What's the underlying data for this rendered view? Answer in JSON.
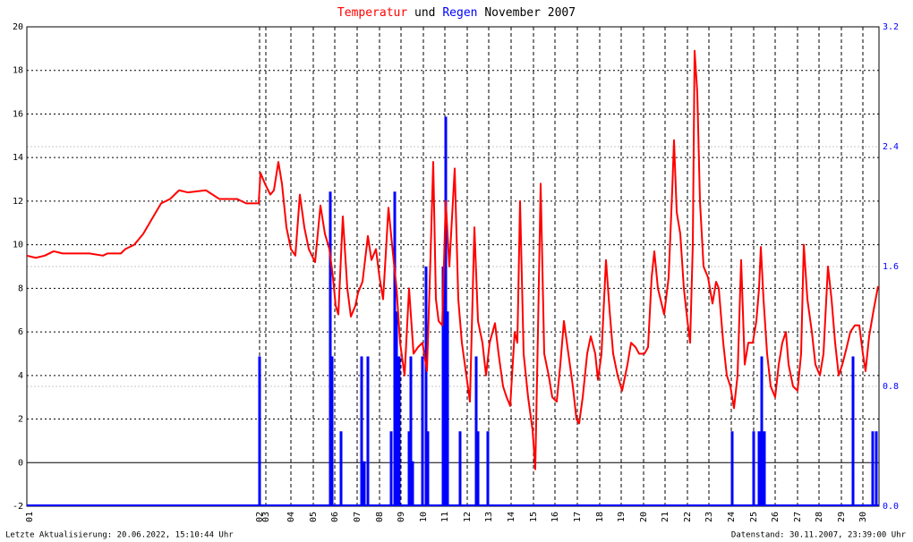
{
  "chart_data": {
    "type": "line-bar",
    "title": [
      "Temperatur",
      "und",
      "Regen",
      "November 2007"
    ],
    "footer_left": "Letzte Aktualisierung: 20.06.2022, 15:10:44 Uhr",
    "footer_right": "Datenstand: 30.11.2007, 23:39:00 Uhr",
    "xlim": [
      30,
      982
    ],
    "xticks": [
      {
        "value": 33,
        "label": "01"
      },
      {
        "value": 290,
        "label": "02"
      },
      {
        "value": 297,
        "label": "03"
      },
      {
        "value": 325,
        "label": "04"
      },
      {
        "value": 350,
        "label": "05"
      },
      {
        "value": 374,
        "label": "06"
      },
      {
        "value": 399,
        "label": "07"
      },
      {
        "value": 424,
        "label": "08"
      },
      {
        "value": 448,
        "label": "09"
      },
      {
        "value": 473,
        "label": "10"
      },
      {
        "value": 497,
        "label": "11"
      },
      {
        "value": 522,
        "label": "12"
      },
      {
        "value": 546,
        "label": "13"
      },
      {
        "value": 571,
        "label": "14"
      },
      {
        "value": 596,
        "label": "15"
      },
      {
        "value": 620,
        "label": "16"
      },
      {
        "value": 645,
        "label": "17"
      },
      {
        "value": 670,
        "label": "18"
      },
      {
        "value": 694,
        "label": "19"
      },
      {
        "value": 719,
        "label": "20"
      },
      {
        "value": 743,
        "label": "21"
      },
      {
        "value": 768,
        "label": "22"
      },
      {
        "value": 792,
        "label": "23"
      },
      {
        "value": 817,
        "label": "24"
      },
      {
        "value": 842,
        "label": "25"
      },
      {
        "value": 866,
        "label": "26"
      },
      {
        "value": 891,
        "label": "27"
      },
      {
        "value": 915,
        "label": "28"
      },
      {
        "value": 940,
        "label": "29"
      },
      {
        "value": 964,
        "label": "30"
      }
    ],
    "ylim": [
      -2,
      20
    ],
    "yticks": [
      -2,
      0,
      2,
      4,
      6,
      8,
      10,
      12,
      14,
      16,
      18,
      20
    ],
    "y2lim": [
      0,
      3.2
    ],
    "y2ticks": [
      {
        "value": 0,
        "label": "0.0"
      },
      0.8,
      1.6,
      2.4,
      3.2
    ],
    "grid": true,
    "series": [
      {
        "name": "Temperatur",
        "color": "#ff0000",
        "kind": "line",
        "x": [
          30,
          40,
          50,
          60,
          70,
          80,
          100,
          115,
          120,
          135,
          140,
          150,
          160,
          170,
          180,
          190,
          200,
          210,
          230,
          245,
          265,
          275,
          289,
          291,
          296,
          302,
          306,
          311,
          315,
          320,
          325,
          330,
          335,
          340,
          345,
          352,
          358,
          363,
          368,
          372,
          375,
          378,
          383,
          388,
          392,
          397,
          400,
          405,
          411,
          415,
          420,
          424,
          428,
          434,
          438,
          443,
          447,
          452,
          457,
          462,
          467,
          472,
          477,
          481,
          484,
          487,
          490,
          494,
          498,
          502,
          508,
          512,
          516,
          520,
          525,
          530,
          534,
          539,
          543,
          547,
          553,
          557,
          562,
          566,
          570,
          575,
          578,
          581,
          585,
          590,
          595,
          598,
          601,
          604,
          608,
          613,
          617,
          622,
          626,
          630,
          635,
          640,
          644,
          647,
          651,
          656,
          660,
          665,
          668,
          672,
          677,
          681,
          685,
          690,
          695,
          701,
          705,
          710,
          714,
          720,
          724,
          728,
          731,
          735,
          742,
          747,
          751,
          753,
          756,
          760,
          764,
          768,
          771,
          774,
          776,
          779,
          782,
          786,
          791,
          796,
          800,
          803,
          808,
          812,
          816,
          820,
          824,
          828,
          832,
          836,
          841,
          845,
          848,
          850,
          853,
          857,
          861,
          866,
          870,
          874,
          878,
          881,
          886,
          891,
          895,
          898,
          902,
          907,
          911,
          916,
          920,
          925,
          929,
          933,
          937,
          941,
          946,
          950,
          955,
          960,
          964,
          967,
          971,
          976,
          981
        ],
        "values": [
          9.5,
          9.4,
          9.5,
          9.7,
          9.6,
          9.6,
          9.6,
          9.5,
          9.6,
          9.6,
          9.8,
          10.0,
          10.5,
          11.2,
          11.9,
          12.1,
          12.5,
          12.4,
          12.5,
          12.1,
          12.1,
          11.9,
          11.9,
          13.3,
          12.8,
          12.3,
          12.5,
          13.8,
          12.8,
          10.8,
          9.8,
          9.5,
          12.3,
          10.8,
          9.8,
          9.2,
          11.8,
          10.5,
          9.8,
          8.5,
          7.2,
          6.8,
          11.3,
          8.0,
          6.7,
          7.2,
          7.8,
          8.3,
          10.4,
          9.3,
          9.8,
          8.5,
          7.5,
          11.7,
          10.0,
          8.0,
          5.5,
          4.0,
          8.0,
          5.0,
          5.3,
          5.5,
          4.2,
          9.5,
          13.8,
          7.5,
          6.5,
          6.3,
          12.0,
          9.0,
          13.5,
          7.5,
          5.5,
          4.3,
          2.8,
          10.8,
          6.5,
          5.5,
          4.0,
          5.5,
          6.4,
          5.0,
          3.5,
          3.0,
          2.6,
          6.0,
          5.5,
          12.0,
          5.0,
          3.0,
          1.5,
          -0.3,
          6.0,
          12.8,
          5.0,
          4.0,
          3.0,
          2.8,
          4.5,
          6.5,
          5.0,
          3.5,
          2.0,
          1.8,
          3.0,
          5.0,
          5.8,
          5.0,
          3.8,
          5.0,
          9.3,
          7.0,
          5.0,
          4.0,
          3.3,
          4.5,
          5.5,
          5.3,
          5.0,
          5.0,
          5.3,
          8.5,
          9.7,
          8.0,
          6.8,
          8.5,
          12.5,
          14.8,
          11.5,
          10.5,
          8.0,
          6.5,
          5.5,
          10.0,
          18.9,
          17.0,
          12.0,
          9.0,
          8.5,
          7.3,
          8.3,
          8.0,
          5.5,
          4.0,
          3.5,
          2.5,
          4.0,
          9.3,
          4.5,
          5.5,
          5.5,
          6.5,
          8.0,
          9.9,
          7.5,
          5.0,
          3.5,
          3.0,
          4.5,
          5.5,
          6.0,
          4.5,
          3.5,
          3.3,
          5.0,
          10.0,
          7.5,
          6.0,
          4.5,
          4.0,
          5.0,
          9.0,
          7.5,
          5.5,
          4.0,
          4.5,
          5.3,
          6.0,
          6.3,
          6.3,
          5.0,
          4.2,
          5.8,
          7.0,
          8.1
        ]
      },
      {
        "name": "Regen",
        "color": "#0000ff",
        "kind": "bar",
        "axis": "y2",
        "x": [
          290,
          369,
          371,
          381,
          404,
          407,
          411,
          437,
          441,
          443,
          446,
          457,
          459,
          461,
          472,
          476,
          478,
          495,
          497,
          498,
          500,
          514,
          532,
          534,
          545,
          818,
          842,
          848,
          851,
          854,
          953,
          975,
          979
        ],
        "values": [
          1.0,
          2.1,
          1.0,
          0.5,
          1.0,
          0.3,
          1.0,
          0.5,
          2.1,
          1.3,
          1.0,
          0.5,
          1.0,
          0.3,
          1.0,
          1.6,
          0.5,
          1.6,
          1.0,
          2.6,
          1.3,
          0.5,
          1.0,
          0.5,
          0.5,
          0.5,
          0.5,
          0.5,
          1.0,
          0.5,
          1.0,
          0.5,
          0.5
        ]
      }
    ]
  }
}
